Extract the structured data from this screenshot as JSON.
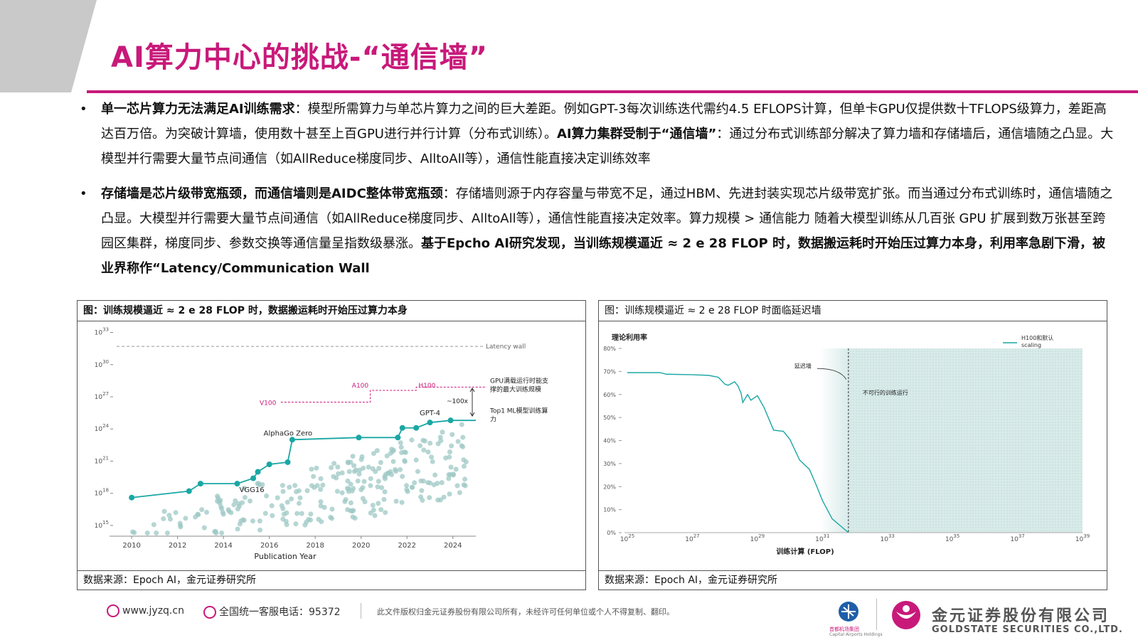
{
  "title": "AI算力中心的挑战-“通信墙”",
  "bullets": [
    {
      "parts": [
        {
          "b": true,
          "t": "单一芯片算力无法满足AI训练需求"
        },
        {
          "b": false,
          "t": "：模型所需算力与单芯片算力之间的巨大差距。例如GPT-3每次训练迭代需约4.5  EFLOPS计算，但单卡GPU仅提供数十TFLOPS级算力，差距高达百万倍。为突破计算墙，使用数十甚至上百GPU进行并行计算（分布式训练）。"
        },
        {
          "b": true,
          "t": "AI算力集群受制于“通信墙”"
        },
        {
          "b": false,
          "t": "：通过分布式训练部分解决了算力墙和存储墙后，通信墙随之凸显。大模型并行需要大量节点间通信（如AllReduce梯度同步、AlltoAll等），通信性能直接决定训练效率"
        }
      ]
    },
    {
      "parts": [
        {
          "b": true,
          "t": "存储墙是芯片级带宽瓶颈，而通信墙则是AIDC整体带宽瓶颈"
        },
        {
          "b": false,
          "t": "：存储墙则源于内存容量与带宽不足，通过HBM、先进封装实现芯片级带宽扩张。而当通过分布式训练时，通信墙随之凸显。大模型并行需要大量节点间通信（如AllReduce梯度同步、AlltoAll等），通信性能直接决定效率。算力规模 > 通信能力   随着大模型训练从几百张 GPU 扩展到数万张甚至跨园区集群，梯度同步、参数交换等通信量呈指数级暴涨。"
        },
        {
          "b": true,
          "t": "基于Epcho AI研究发现，当训练规模逼近 ≈ 2 e 28 FLOP 时，数据搬运耗时开始压过算力本身，利用率急剧下滑，被业界称作“Latency/Communication Wall"
        }
      ]
    }
  ],
  "panel_left": {
    "caption": "图：训练规模逼近 ≈ 2 e 28 FLOP 时，数据搬运耗时开始压过算力本身",
    "source": "数据来源：Epoch AI，金元证券研究所"
  },
  "panel_right": {
    "caption": "图：训练规模逼近 ≈ 2 e 28 FLOP  时面临延迟墙",
    "source": "数据来源：Epoch AI，金元证券研究所"
  },
  "chart_data": [
    {
      "type": "scatter",
      "xlabel": "Publication Year",
      "x_ticks": [
        "2010",
        "2012",
        "2014",
        "2016",
        "2018",
        "2020",
        "2022",
        "2024"
      ],
      "y_ticks": [
        "10^15",
        "10^18",
        "10^21",
        "10^24",
        "10^27",
        "10^30",
        "10^33"
      ],
      "xlim": [
        2009.5,
        2025
      ],
      "ylim_log10": [
        14,
        33.5
      ],
      "frontier": {
        "name": "Top1 ML模型训练算力",
        "x": [
          2010.0,
          2012.5,
          2013.0,
          2014.6,
          2015.3,
          2015.5,
          2016.0,
          2016.8,
          2017.0,
          2019.9,
          2021.6,
          2021.8,
          2022.4,
          2023.0,
          2023.9,
          2025.0
        ],
        "y_log10": [
          17.6,
          18.2,
          18.9,
          18.9,
          19.4,
          20.0,
          20.7,
          20.9,
          23.0,
          23.2,
          23.2,
          24.1,
          24.1,
          24.6,
          24.8,
          24.8
        ]
      },
      "annotations": [
        {
          "text": "VGG16",
          "x": 2014.6,
          "y_log10": 18.9
        },
        {
          "text": "AlphaGo Zero",
          "x": 2017.0,
          "y_log10": 23.0
        },
        {
          "text": "GPT-4",
          "x": 2023.0,
          "y_log10": 24.6
        },
        {
          "text": "Latency wall",
          "y_log10": 31.7
        },
        {
          "text": "V100",
          "y_log10": 26.5
        },
        {
          "text": "A100",
          "y_log10": 27.6
        },
        {
          "text": "H100",
          "y_log10": 27.6
        },
        {
          "text": "~100x"
        },
        {
          "text": "GPU满载运行时能支撑的最大训练规模"
        },
        {
          "text": "Top1 ML模型训练算力"
        }
      ],
      "colors": {
        "frontier": "#1aa7a4",
        "scatter": "#9ec8c4",
        "gpu": "#c8197a"
      }
    },
    {
      "type": "line",
      "ylabel": "理论利用率",
      "xlabel": "训练计算   (FLOP)",
      "x_ticks": [
        "10^25",
        "10^27",
        "10^29",
        "10^31",
        "10^33",
        "10^35",
        "10^37",
        "10^39"
      ],
      "y_ticks": [
        "0%",
        "10%",
        "20%",
        "30%",
        "40%",
        "50%",
        "60%",
        "70%",
        "80%"
      ],
      "xlim_log10": [
        25,
        39
      ],
      "ylim": [
        0,
        80
      ],
      "series": [
        {
          "name": "H100和默认 scaling",
          "x_log10": [
            25.0,
            26.0,
            26.2,
            27.0,
            27.5,
            27.8,
            28.0,
            28.1,
            28.3,
            28.4,
            28.5,
            28.55,
            28.7,
            28.8,
            29.0,
            29.2,
            29.5,
            29.8,
            30.0,
            30.3,
            30.6,
            30.8,
            31.0,
            31.3,
            31.8
          ],
          "y": [
            69.5,
            69.5,
            68.8,
            68.6,
            68.3,
            67.5,
            64.5,
            64.0,
            65.5,
            63.8,
            60.5,
            56.5,
            60.0,
            57.5,
            59.5,
            54.5,
            44.5,
            44.0,
            40.5,
            31.5,
            27.5,
            21.0,
            14.0,
            6.0,
            0.0
          ]
        }
      ],
      "annotations": [
        {
          "text": "延迟墙",
          "x_log10": 31.8
        },
        {
          "text": "不可行的训练运行"
        }
      ],
      "colors": {
        "line": "#1aa7a4",
        "infeasible": "#d8ebe9"
      }
    }
  ],
  "footer": {
    "website": "www.jyzq.cn",
    "hotline": "全国统一客服电话：95372",
    "copyright": "此文件版权归金元证券股份有限公司所有，未经许可任何单位或个人不得复制、翻印。",
    "group_cn": "首都机场集团",
    "group_en": "Capital Airports Holdings",
    "company_cn": "金元证券股份有限公司",
    "company_en": "GOLDSTATE SECURITIES CO.,LTD."
  }
}
